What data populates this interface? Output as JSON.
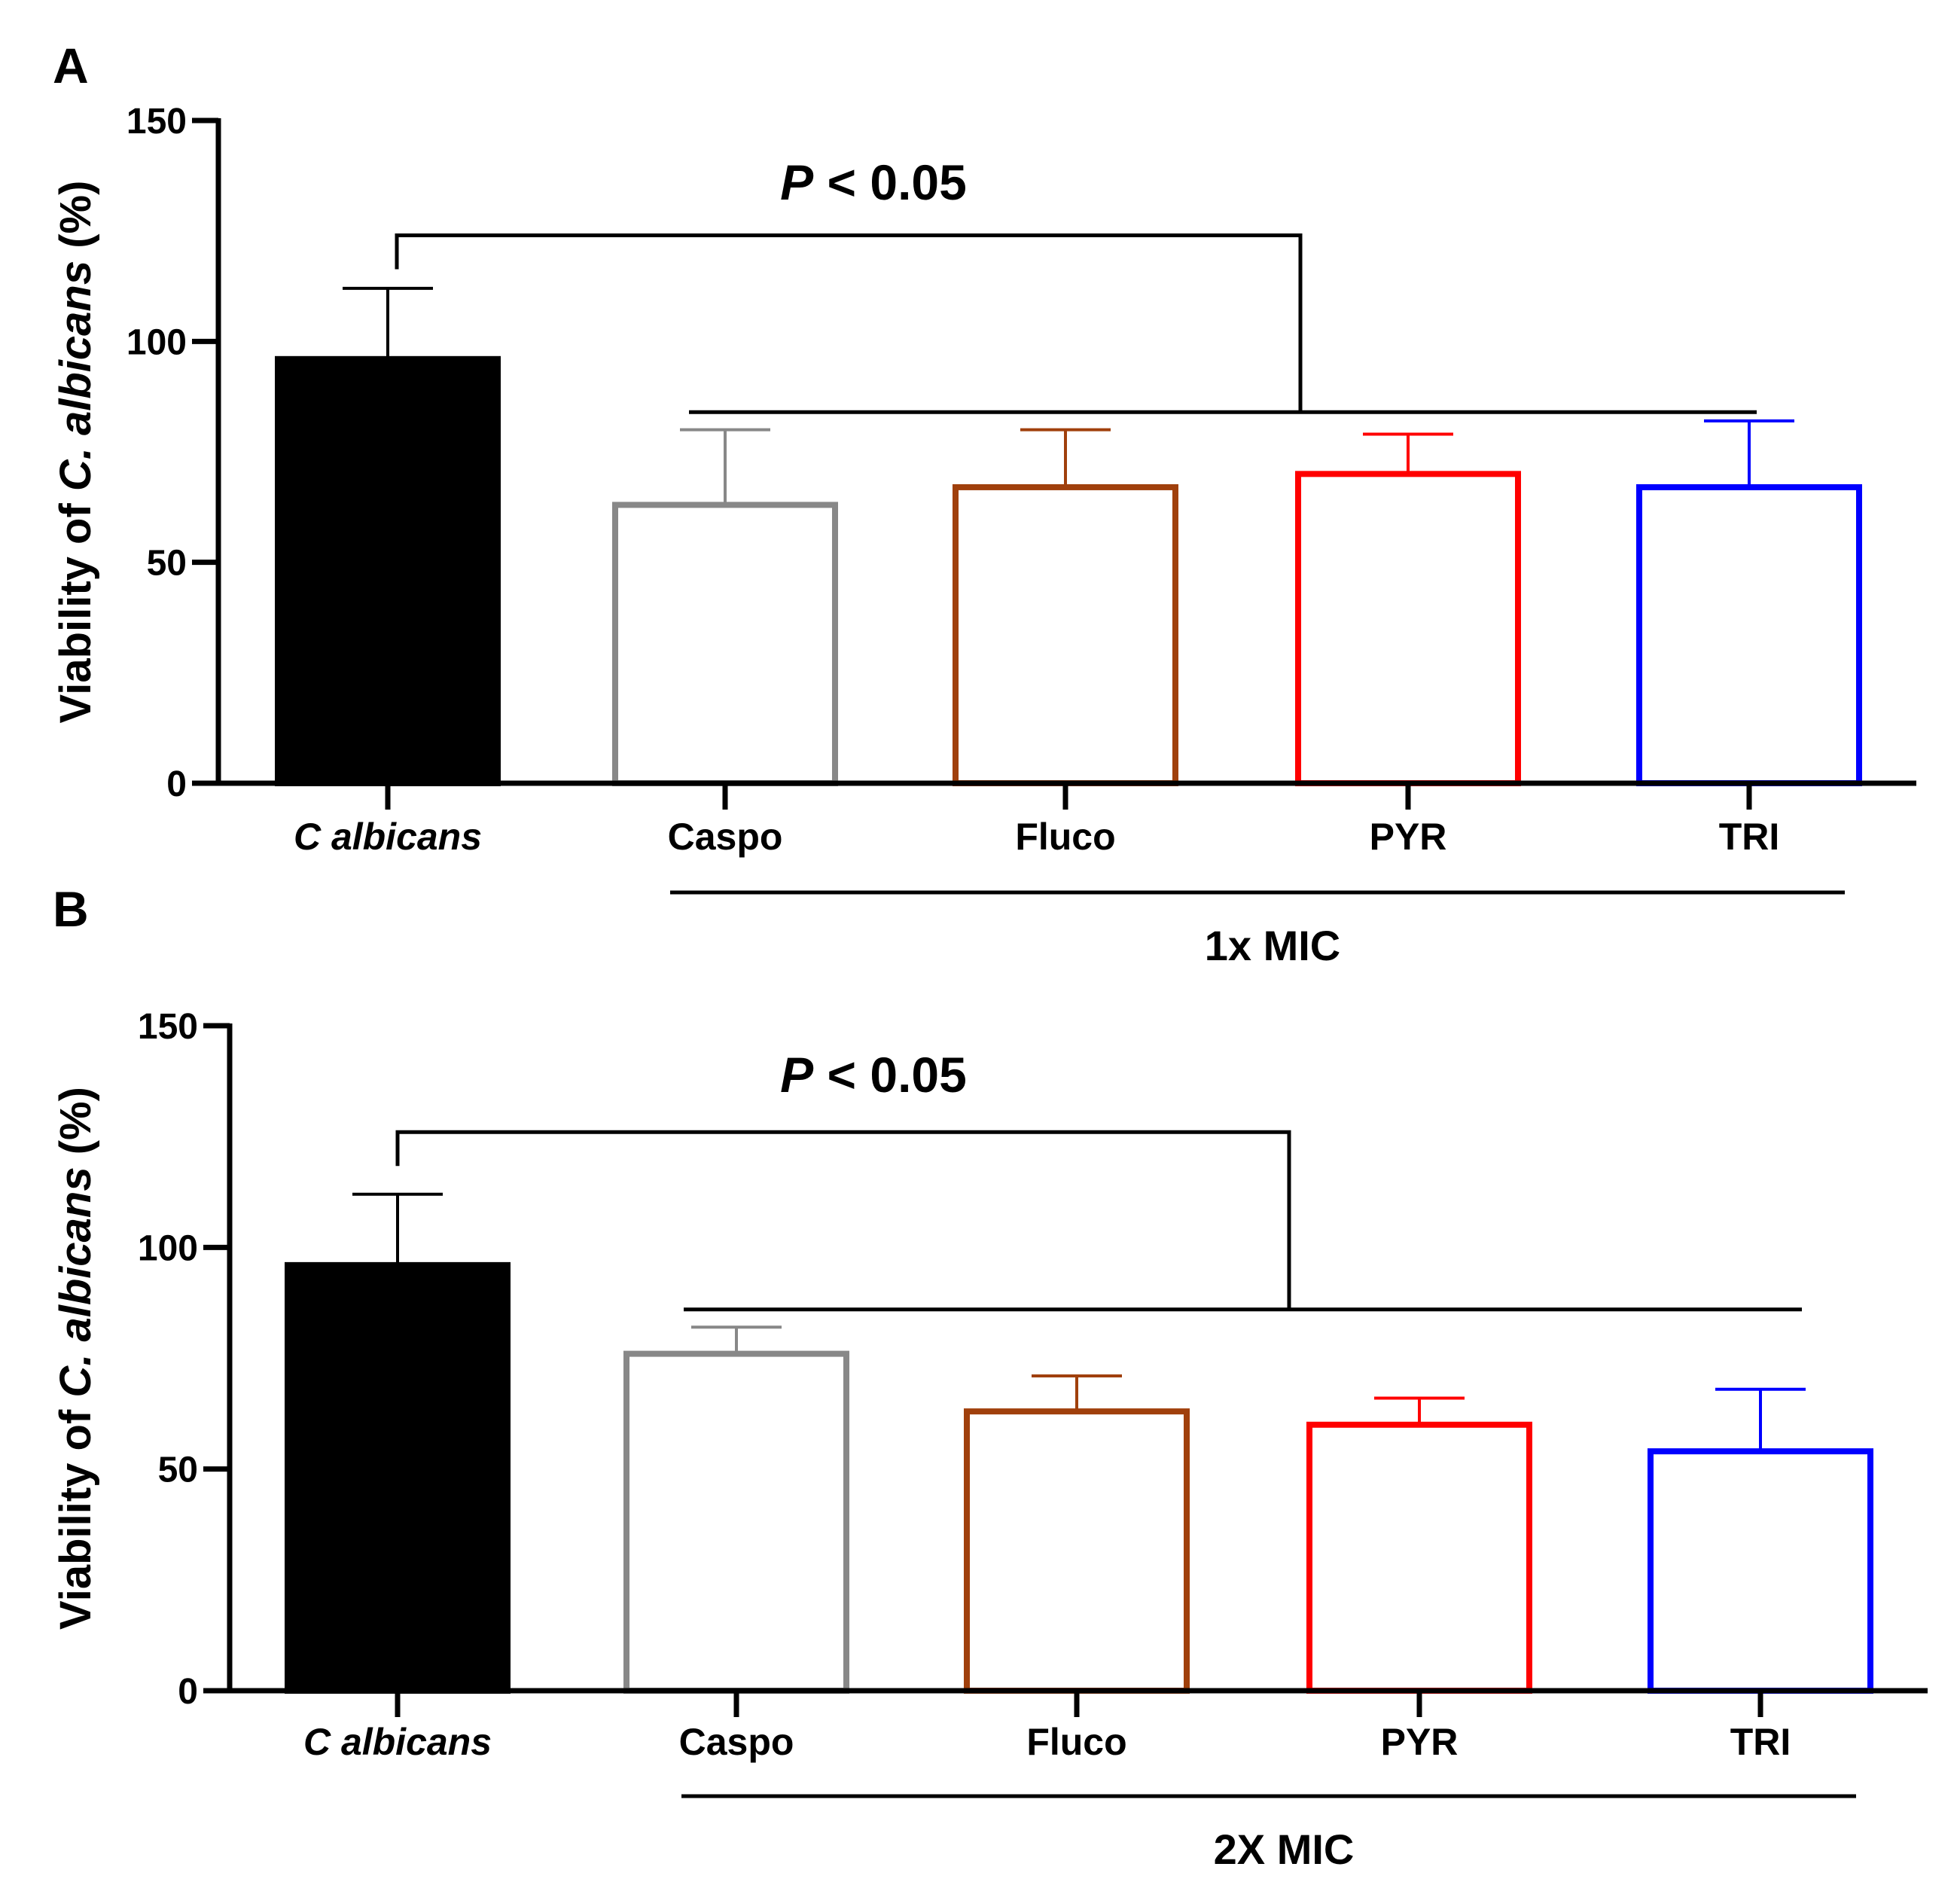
{
  "chart_data": [
    {
      "panel_label": "A",
      "type": "bar",
      "ylabel_parts": [
        "Viability of ",
        "C. albicans",
        " (%)"
      ],
      "ylim": [
        0,
        150
      ],
      "yticks": [
        "0",
        "50",
        "100",
        "150"
      ],
      "categories": [
        "C albicans",
        "Caspo",
        "Fluco",
        "PYR",
        "TRI"
      ],
      "category_italic": [
        true,
        false,
        false,
        false,
        false
      ],
      "values": [
        96,
        63,
        67,
        70,
        67
      ],
      "errors": [
        16,
        17,
        13,
        9,
        15
      ],
      "colors": [
        "#000000",
        "#888888",
        "#a0400c",
        "#ff0000",
        "#0000ff"
      ],
      "filled": [
        true,
        false,
        false,
        false,
        false
      ],
      "group_label": "1x MIC",
      "significance": {
        "p_italic": "P",
        "rest": " < 0.05",
        "bracket_y": 124,
        "bar_y": 84
      }
    },
    {
      "panel_label": "B",
      "type": "bar",
      "ylabel_parts": [
        "Viability of ",
        "C. albicans",
        " (%)"
      ],
      "ylim": [
        0,
        150
      ],
      "yticks": [
        "0",
        "50",
        "100",
        "150"
      ],
      "categories": [
        "C albicans",
        "Caspo",
        "Fluco",
        "PYR",
        "TRI"
      ],
      "category_italic": [
        true,
        false,
        false,
        false,
        false
      ],
      "values": [
        96,
        76,
        63,
        60,
        54
      ],
      "errors": [
        16,
        6,
        8,
        6,
        14
      ],
      "colors": [
        "#000000",
        "#888888",
        "#a0400c",
        "#ff0000",
        "#0000ff"
      ],
      "filled": [
        true,
        false,
        false,
        false,
        false
      ],
      "group_label": "2X MIC",
      "significance": {
        "p_italic": "P",
        "rest": " < 0.05",
        "bracket_y": 126,
        "bar_y": 86
      }
    }
  ]
}
